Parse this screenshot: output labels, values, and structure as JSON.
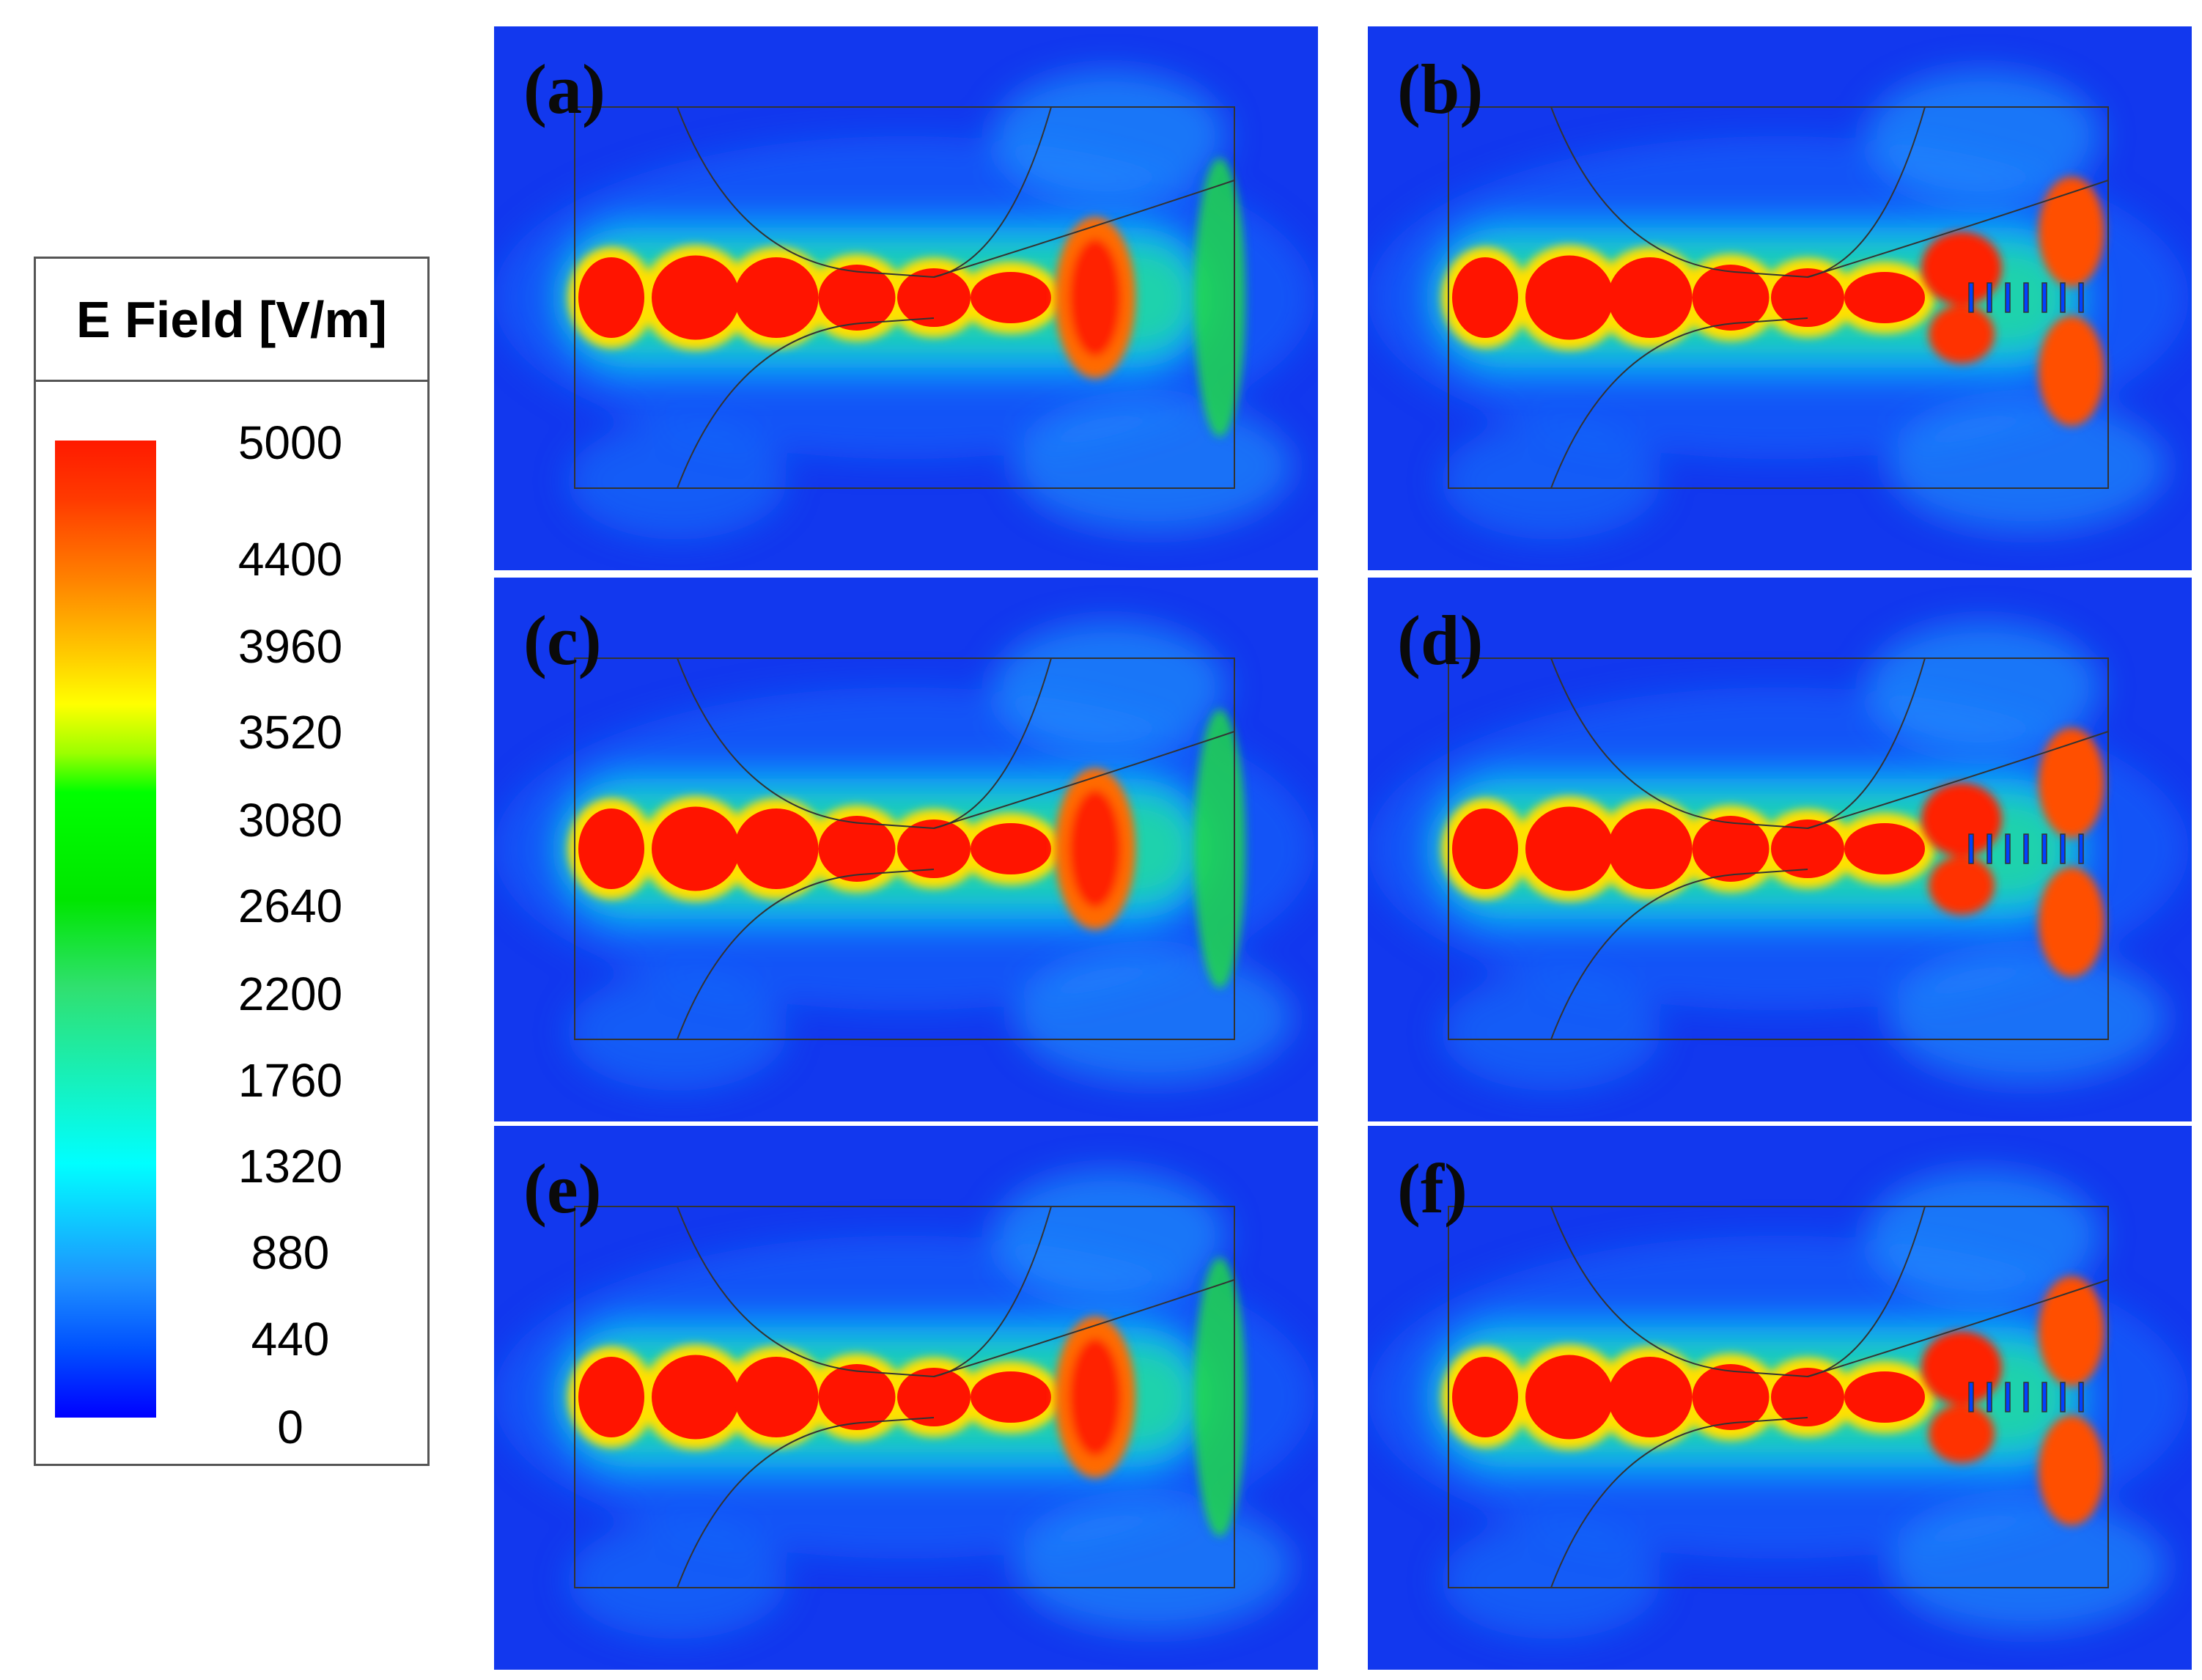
{
  "legend": {
    "title": "E Field [V/m]",
    "ticks": [
      "5000",
      "4400",
      "3960",
      "3520",
      "3080",
      "2640",
      "2200",
      "1760",
      "1320",
      "880",
      "440",
      "0"
    ]
  },
  "colors": {
    "low": "#0000ff",
    "mid_low": "#00ffff",
    "mid": "#00ff00",
    "mid_high": "#ffff00",
    "high": "#ff0000"
  },
  "panels": [
    {
      "label": "(a)"
    },
    {
      "label": "(b)"
    },
    {
      "label": "(c)"
    },
    {
      "label": "(d)"
    },
    {
      "label": "(e)"
    },
    {
      "label": "(f)"
    }
  ]
}
